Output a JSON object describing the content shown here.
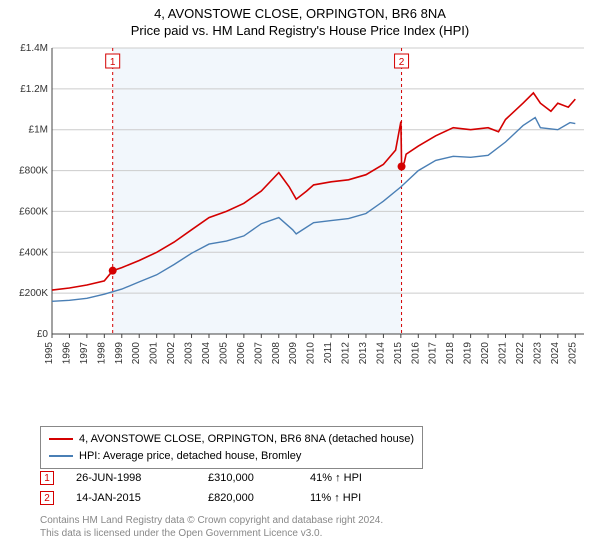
{
  "title_line1": "4, AVONSTOWE CLOSE, ORPINGTON, BR6 8NA",
  "title_line2": "Price paid vs. HM Land Registry's House Price Index (HPI)",
  "chart": {
    "type": "line",
    "background_color": "#ffffff",
    "plot_bg_band_color": "#f2f7fc",
    "grid_color": "#cccccc",
    "axis_color": "#444444",
    "x_years": [
      1995,
      1996,
      1997,
      1998,
      1999,
      2000,
      2001,
      2002,
      2003,
      2004,
      2005,
      2006,
      2007,
      2008,
      2009,
      2010,
      2011,
      2012,
      2013,
      2014,
      2015,
      2016,
      2017,
      2018,
      2019,
      2020,
      2021,
      2022,
      2023,
      2024,
      2025
    ],
    "xlim": [
      1995,
      2025.5
    ],
    "ylim": [
      0,
      1400000
    ],
    "ytick_step": 200000,
    "ytick_labels": [
      "£0",
      "£200K",
      "£400K",
      "£600K",
      "£800K",
      "£1M",
      "£1.2M",
      "£1.4M"
    ],
    "tick_fontsize": 10,
    "series": [
      {
        "name": "price_paid",
        "color": "#d40000",
        "width": 1.6,
        "label": "4, AVONSTOWE CLOSE, ORPINGTON, BR6 8NA (detached house)",
        "data": [
          [
            1995,
            215000
          ],
          [
            1996,
            225000
          ],
          [
            1997,
            240000
          ],
          [
            1998,
            260000
          ],
          [
            1998.48,
            310000
          ],
          [
            1999,
            325000
          ],
          [
            2000,
            360000
          ],
          [
            2001,
            400000
          ],
          [
            2002,
            450000
          ],
          [
            2003,
            510000
          ],
          [
            2004,
            570000
          ],
          [
            2005,
            600000
          ],
          [
            2006,
            640000
          ],
          [
            2007,
            700000
          ],
          [
            2008,
            790000
          ],
          [
            2008.6,
            720000
          ],
          [
            2009,
            660000
          ],
          [
            2009.6,
            700000
          ],
          [
            2010,
            730000
          ],
          [
            2011,
            745000
          ],
          [
            2012,
            755000
          ],
          [
            2013,
            780000
          ],
          [
            2014,
            830000
          ],
          [
            2014.7,
            900000
          ],
          [
            2015,
            1040000
          ],
          [
            2015.04,
            820000
          ],
          [
            2015.2,
            840000
          ],
          [
            2015.3,
            880000
          ],
          [
            2016,
            920000
          ],
          [
            2017,
            970000
          ],
          [
            2018,
            1010000
          ],
          [
            2019,
            1000000
          ],
          [
            2020,
            1010000
          ],
          [
            2020.6,
            990000
          ],
          [
            2021,
            1050000
          ],
          [
            2022,
            1130000
          ],
          [
            2022.6,
            1180000
          ],
          [
            2023,
            1130000
          ],
          [
            2023.6,
            1090000
          ],
          [
            2024,
            1130000
          ],
          [
            2024.6,
            1110000
          ],
          [
            2025,
            1150000
          ]
        ]
      },
      {
        "name": "hpi",
        "color": "#4a7fb5",
        "width": 1.4,
        "label": "HPI: Average price, detached house, Bromley",
        "data": [
          [
            1995,
            160000
          ],
          [
            1996,
            165000
          ],
          [
            1997,
            175000
          ],
          [
            1998,
            195000
          ],
          [
            1999,
            220000
          ],
          [
            2000,
            255000
          ],
          [
            2001,
            290000
          ],
          [
            2002,
            340000
          ],
          [
            2003,
            395000
          ],
          [
            2004,
            440000
          ],
          [
            2005,
            455000
          ],
          [
            2006,
            480000
          ],
          [
            2007,
            540000
          ],
          [
            2008,
            570000
          ],
          [
            2008.8,
            510000
          ],
          [
            2009,
            490000
          ],
          [
            2010,
            545000
          ],
          [
            2011,
            555000
          ],
          [
            2012,
            565000
          ],
          [
            2013,
            590000
          ],
          [
            2014,
            650000
          ],
          [
            2015,
            720000
          ],
          [
            2016,
            800000
          ],
          [
            2017,
            850000
          ],
          [
            2018,
            870000
          ],
          [
            2019,
            865000
          ],
          [
            2020,
            875000
          ],
          [
            2021,
            940000
          ],
          [
            2022,
            1020000
          ],
          [
            2022.7,
            1060000
          ],
          [
            2023,
            1010000
          ],
          [
            2024,
            1000000
          ],
          [
            2024.7,
            1035000
          ],
          [
            2025,
            1030000
          ]
        ]
      }
    ],
    "sale_markers": [
      {
        "n": "1",
        "x": 1998.48,
        "y": 310000,
        "line_color": "#d40000",
        "box_y_top": 64
      },
      {
        "n": "2",
        "x": 2015.04,
        "y": 820000,
        "line_color": "#d40000",
        "box_y_top": 64
      }
    ],
    "band": {
      "x_start": 1998.48,
      "x_end": 2015.04
    }
  },
  "legend": {
    "series1_color": "#d40000",
    "series1_label": "4, AVONSTOWE CLOSE, ORPINGTON, BR6 8NA (detached house)",
    "series2_color": "#4a7fb5",
    "series2_label": "HPI: Average price, detached house, Bromley"
  },
  "sales": [
    {
      "n": "1",
      "date": "26-JUN-1998",
      "price": "£310,000",
      "delta": "41% ↑ HPI",
      "color": "#d40000"
    },
    {
      "n": "2",
      "date": "14-JAN-2015",
      "price": "£820,000",
      "delta": "11% ↑ HPI",
      "color": "#d40000"
    }
  ],
  "footer_line1": "Contains HM Land Registry data © Crown copyright and database right 2024.",
  "footer_line2": "This data is licensed under the Open Government Licence v3.0."
}
